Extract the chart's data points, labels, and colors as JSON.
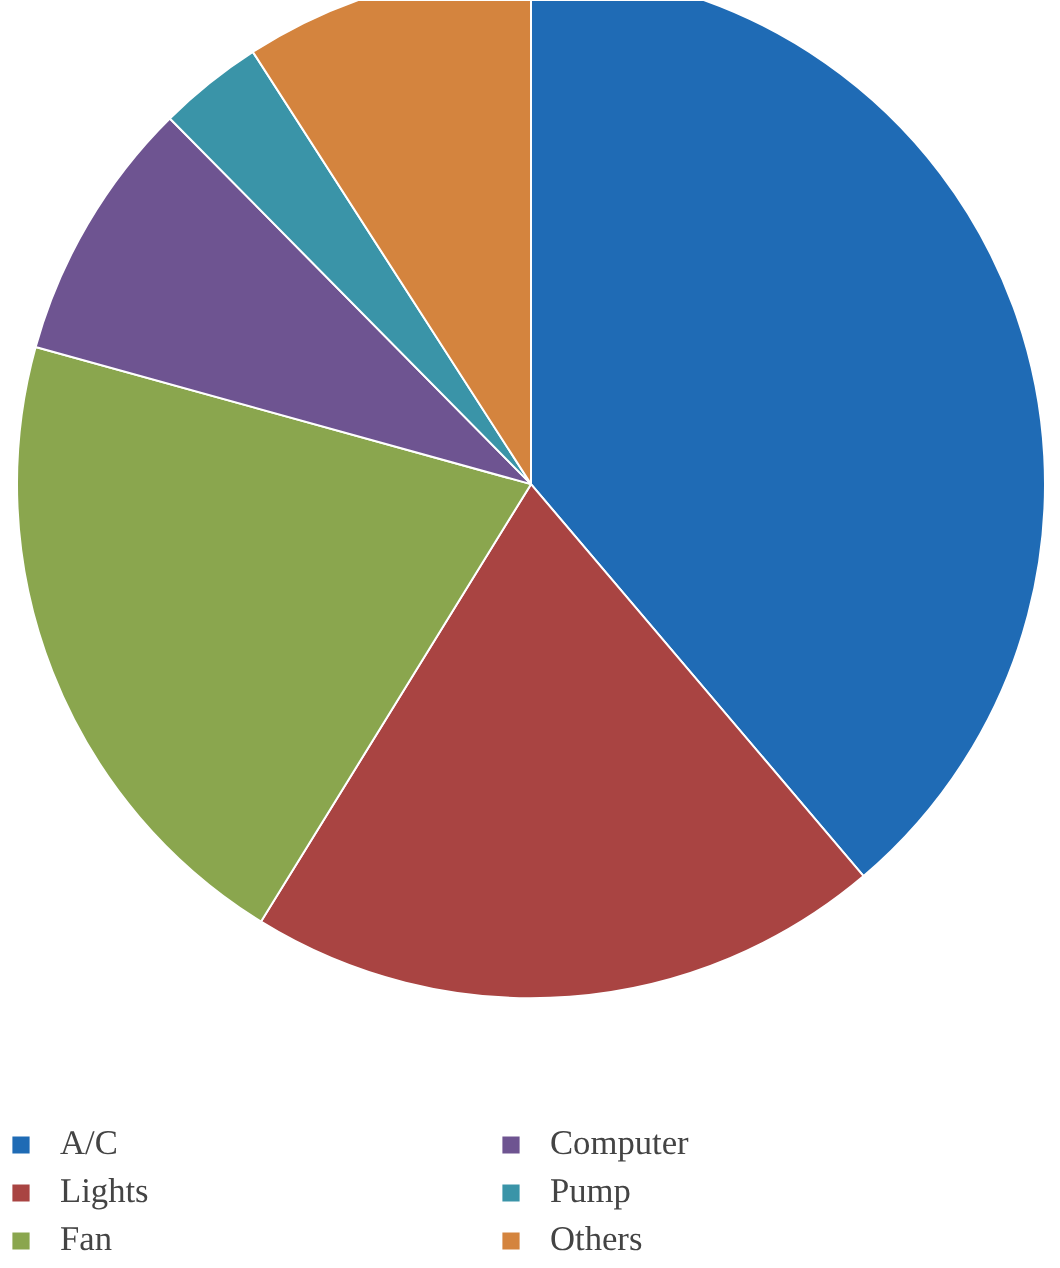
{
  "chart_data": {
    "type": "pie",
    "categories": [
      "A/C",
      "Lights",
      "Fan",
      "Computer",
      "Pump",
      "Others"
    ],
    "values": [
      38.8,
      20.0,
      20.5,
      8.3,
      3.3,
      9.1
    ],
    "colors": [
      "#1f6bb5",
      "#a94442",
      "#8aa64e",
      "#6e5491",
      "#3a94a8",
      "#d4843e"
    ],
    "legend": "bottom"
  }
}
